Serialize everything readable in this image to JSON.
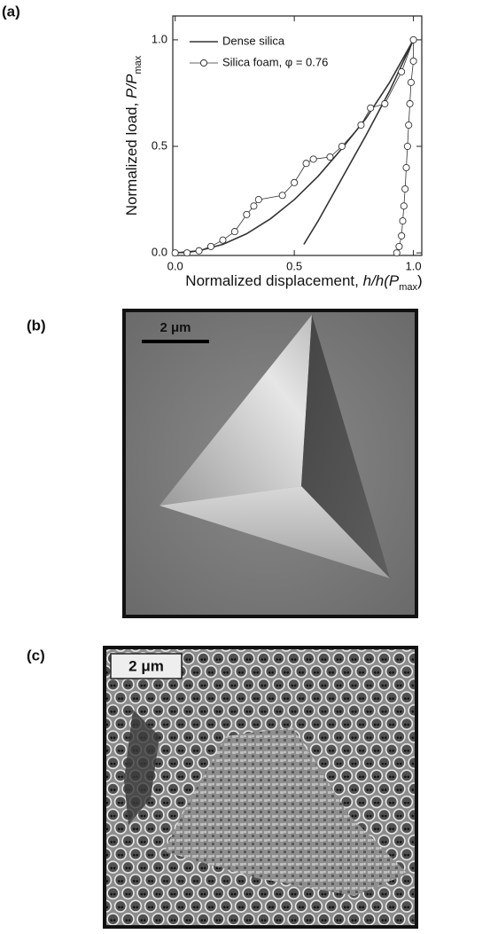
{
  "chart_data": {
    "type": "line",
    "panel_label": "(a)",
    "xlabel": {
      "text": "Normalized displacement, ",
      "var": "h/h(P",
      "sub": "max",
      "end": ")"
    },
    "ylabel": {
      "text": "Normalized load, ",
      "var": "P/P",
      "sub": "max"
    },
    "xlim": [
      -0.01,
      1.035
    ],
    "ylim": [
      -0.012,
      1.112
    ],
    "xticks": [
      {
        "value": 0,
        "label": "0.0"
      },
      {
        "value": 0.5,
        "label": "0.5"
      },
      {
        "value": 1,
        "label": "1.0"
      }
    ],
    "yticks": [
      {
        "value": 0,
        "label": "0.0"
      },
      {
        "value": 0.5,
        "label": "0.5"
      },
      {
        "value": 1,
        "label": "1.0"
      }
    ],
    "series": [
      {
        "name": "Dense silica",
        "color": "#333333",
        "markers": false,
        "x": [
          0,
          0.1,
          0.2,
          0.3,
          0.4,
          0.5,
          0.6,
          0.7,
          0.8,
          0.9,
          1.0,
          null,
          0.54,
          0.6,
          0.7,
          0.8,
          0.9,
          1.0
        ],
        "values": [
          0,
          0.01,
          0.04,
          0.09,
          0.16,
          0.25,
          0.36,
          0.49,
          0.63,
          0.8,
          1.0,
          null,
          0.04,
          0.15,
          0.35,
          0.55,
          0.76,
          1.0
        ]
      },
      {
        "name": "Silica foam, φ = 0.76",
        "color": "#333333",
        "markers": true,
        "x": [
          0,
          0.05,
          0.1,
          0.15,
          0.2,
          0.25,
          0.3,
          0.33,
          0.35,
          0.45,
          0.5,
          0.55,
          0.58,
          0.65,
          0.7,
          0.78,
          0.82,
          0.88,
          0.95,
          1.0,
          1.0,
          0.99,
          0.985,
          0.98,
          0.975,
          0.97,
          0.965,
          0.96,
          0.955,
          0.95,
          0.94,
          0.93
        ],
        "values": [
          0,
          0,
          0.01,
          0.03,
          0.06,
          0.1,
          0.18,
          0.22,
          0.25,
          0.27,
          0.33,
          0.42,
          0.44,
          0.45,
          0.5,
          0.6,
          0.68,
          0.7,
          0.85,
          1.0,
          0.9,
          0.8,
          0.7,
          0.6,
          0.5,
          0.4,
          0.3,
          0.22,
          0.15,
          0.08,
          0.03,
          0
        ]
      }
    ]
  },
  "panels": {
    "b": {
      "label": "(b)",
      "scale_bar": "2 μm"
    },
    "c": {
      "label": "(c)",
      "scale_bar": "2 μm"
    }
  }
}
